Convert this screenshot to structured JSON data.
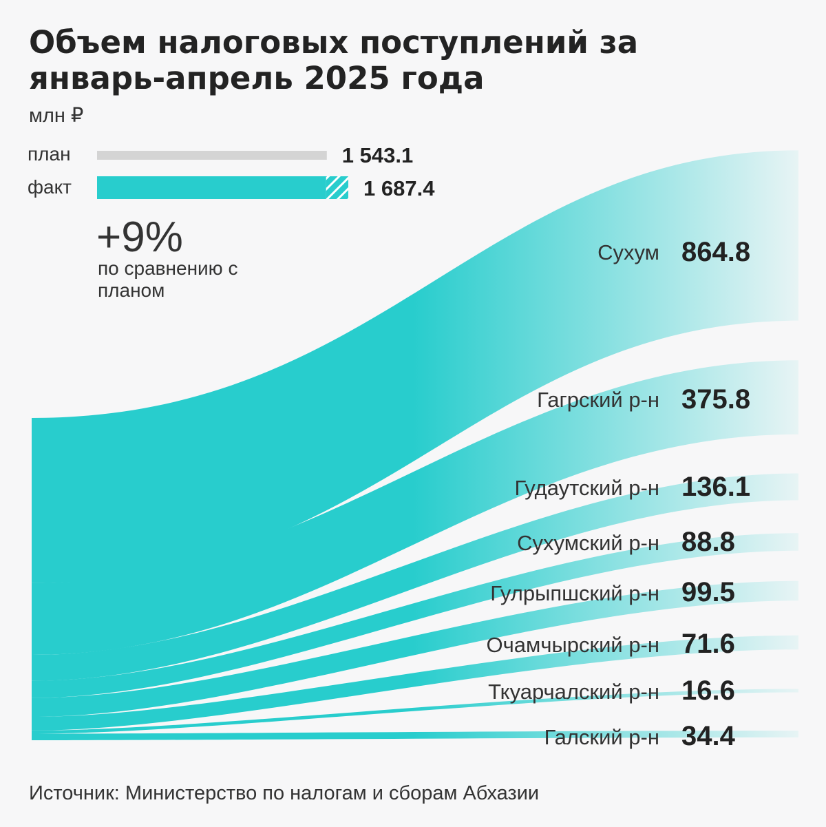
{
  "title": "Объем налоговых поступлений за январь-апрель 2025 года",
  "unit": "млн ₽",
  "legend": {
    "plan_label": "план",
    "fact_label": "факт",
    "plan_value": 1543.1,
    "fact_value": 1687.4,
    "plan_text": "1 543.1",
    "fact_text": "1 687.4"
  },
  "comparison": {
    "percent": "+9%",
    "note": "по сравнению с планом"
  },
  "colors": {
    "accent": "#28cdcd",
    "plan": "#d4d4d4",
    "background": "#f7f7f8"
  },
  "chart_data": {
    "type": "sankey",
    "source_total": 1687.4,
    "nodes": [
      {
        "label": "Сухум",
        "text": "864.8",
        "value": 864.8
      },
      {
        "label": "Гагрский р-н",
        "text": "375.8",
        "value": 375.8
      },
      {
        "label": "Гудаутский р-н",
        "text": "136.1",
        "value": 136.1
      },
      {
        "label": "Сухумский р-н",
        "text": "88.8",
        "value": 88.8
      },
      {
        "label": "Гулрыпшский р-н",
        "text": "99.5",
        "value": 99.5
      },
      {
        "label": "Очамчырский р-н",
        "text": "71.6",
        "value": 71.6
      },
      {
        "label": "Ткуарчалский р-н",
        "text": "16.6",
        "value": 16.6
      },
      {
        "label": "Галский р-н",
        "text": "34.4",
        "value": 34.4
      }
    ]
  },
  "source": "Источник: Министерство по налогам и сборам Абхазии"
}
